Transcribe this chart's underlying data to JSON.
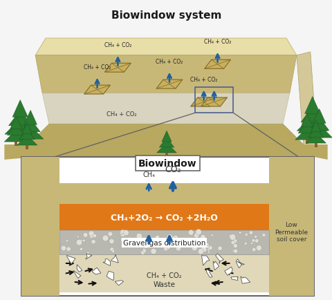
{
  "title_top": "Biowindow system",
  "title_box": "Biowindow",
  "reaction_text": "CH₄+2O₂ → CO₂ +2H₂O",
  "gravel_text": "Gravel gas distribution",
  "soil_cover_text": "Low\nPermeable\nsoil cover",
  "waste_text": "Waste",
  "ch4_co2_label": "CH₄ + CO₂",
  "ch4_label": "CH₄",
  "co2_label": "CO₂",
  "bg_color": "#f5f5f5",
  "landfill_top_color": "#c8b878",
  "landfill_right_color": "#d4c48a",
  "landfill_front_color": "#b8a860",
  "landfill_gray": "#d0cdb8",
  "orange_color": "#e07818",
  "gravel_color": "#c0c0b8",
  "soil_color": "#c8b878",
  "box_bg": "#ffffff",
  "tree_color": "#2a7a30",
  "arrow_color": "#2060a0",
  "waste_arrow_color": "#111111",
  "ground_color": "#b0a060"
}
